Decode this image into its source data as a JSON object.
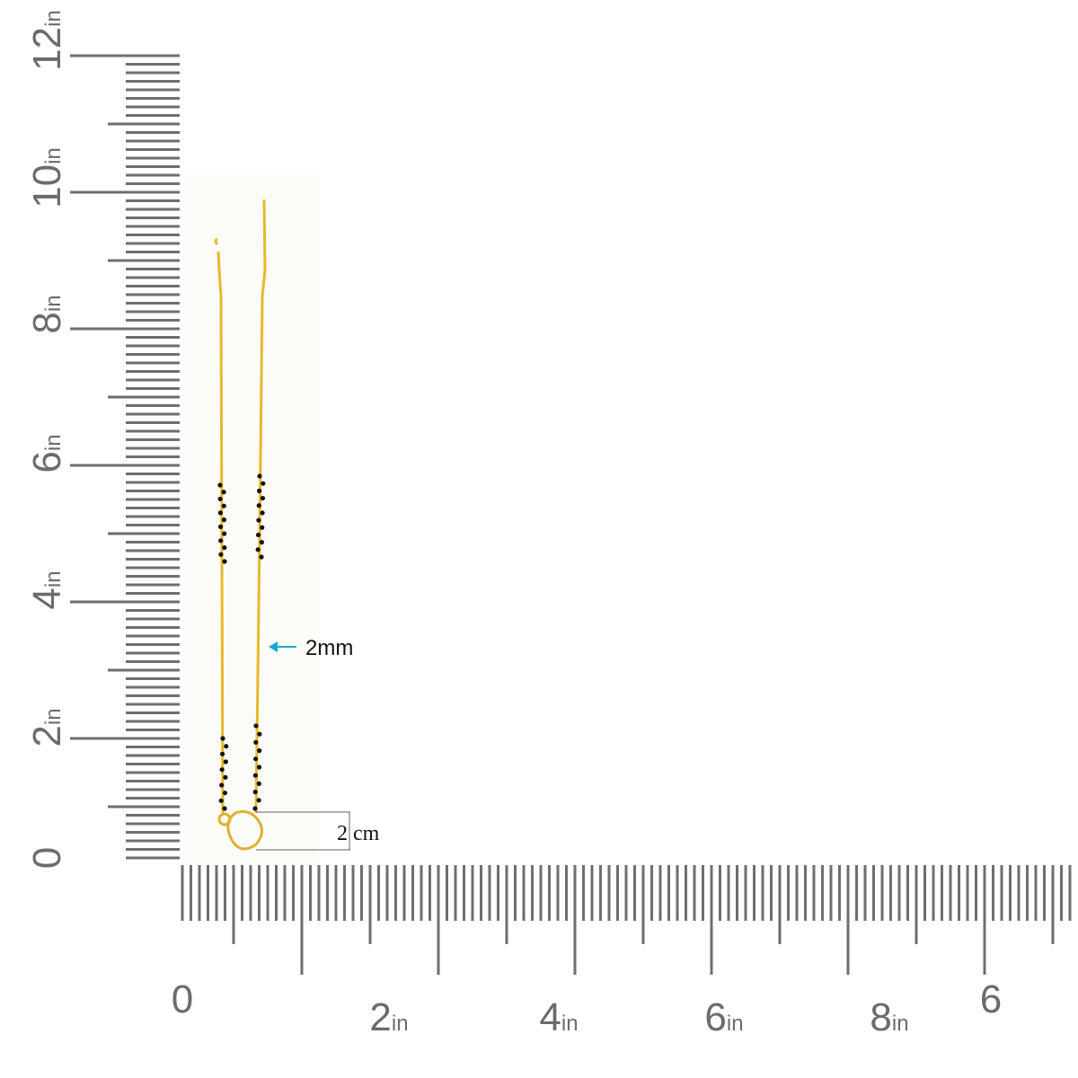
{
  "vertical_ruler": {
    "labels": [
      {
        "number": "12",
        "unit": "in"
      },
      {
        "number": "10",
        "unit": "in"
      },
      {
        "number": "8",
        "unit": "in"
      },
      {
        "number": "6",
        "unit": "in"
      },
      {
        "number": "4",
        "unit": "in"
      },
      {
        "number": "2",
        "unit": "in"
      },
      {
        "number": "0"
      }
    ]
  },
  "horizontal_ruler": {
    "labels": [
      {
        "number": "0"
      },
      {
        "number": "2",
        "unit": "in"
      },
      {
        "number": "4",
        "unit": "in"
      },
      {
        "number": "6",
        "unit": "in"
      },
      {
        "number": "8",
        "unit": "in"
      },
      {
        "number": "6"
      }
    ]
  },
  "annotations": {
    "chain_width": "2mm",
    "pendant_size": "2 cm"
  }
}
